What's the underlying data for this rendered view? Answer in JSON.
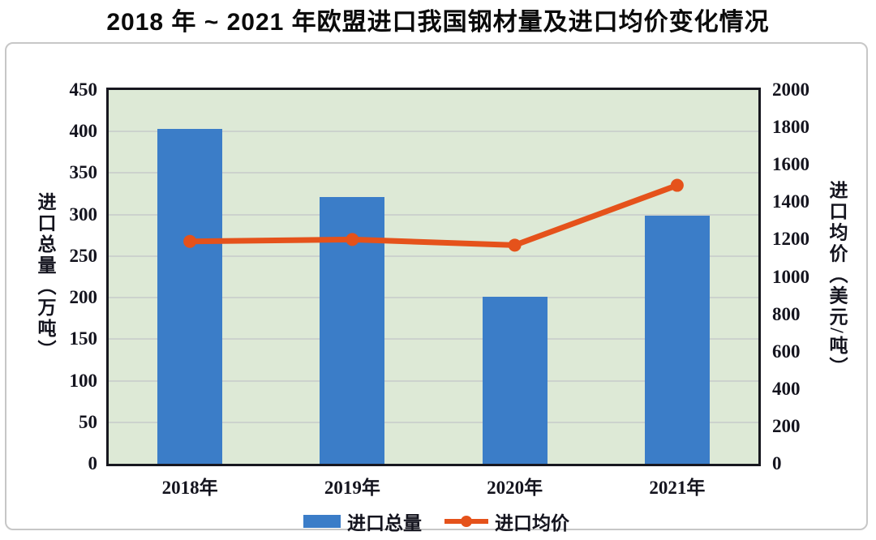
{
  "title": "2018 年 ~ 2021 年欧盟进口我国钢材量及进口均价变化情况",
  "colors": {
    "bar": "#3b7dc8",
    "line": "#e5521b",
    "plot_bg": "#dde9d6",
    "grid": "#ccd2cd",
    "plot_border": "#17171f",
    "card_border": "#c7c7c7",
    "text": "#14141e",
    "title_text": "#0b0b0b"
  },
  "chart_data": {
    "type": "bar",
    "subtype": "bar+line-dual-axis",
    "title": "2018 年 ~ 2021 年欧盟进口我国钢材量及进口均价变化情况",
    "categories": [
      "2018年",
      "2019年",
      "2020年",
      "2021年"
    ],
    "series": [
      {
        "name": "进口总量",
        "type": "bar",
        "axis": "left",
        "values": [
          403,
          321,
          201,
          299
        ]
      },
      {
        "name": "进口均价",
        "type": "line",
        "axis": "right",
        "values": [
          1190,
          1200,
          1170,
          1490
        ]
      }
    ],
    "left_axis": {
      "label": "进口总量（万吨）",
      "min": 0,
      "max": 450,
      "step": 50,
      "ticks": [
        "450",
        "400",
        "350",
        "300",
        "250",
        "200",
        "150",
        "100",
        "50",
        "0"
      ]
    },
    "right_axis": {
      "label": "进口均价（美元/吨）",
      "min": 0,
      "max": 2000,
      "step": 200,
      "ticks": [
        "2000",
        "1800",
        "1600",
        "1400",
        "1200",
        "1000",
        "800",
        "600",
        "400",
        "200",
        "0"
      ]
    },
    "grid": true,
    "legend_position": "bottom",
    "legend": [
      "进口总量",
      "进口均价"
    ]
  }
}
